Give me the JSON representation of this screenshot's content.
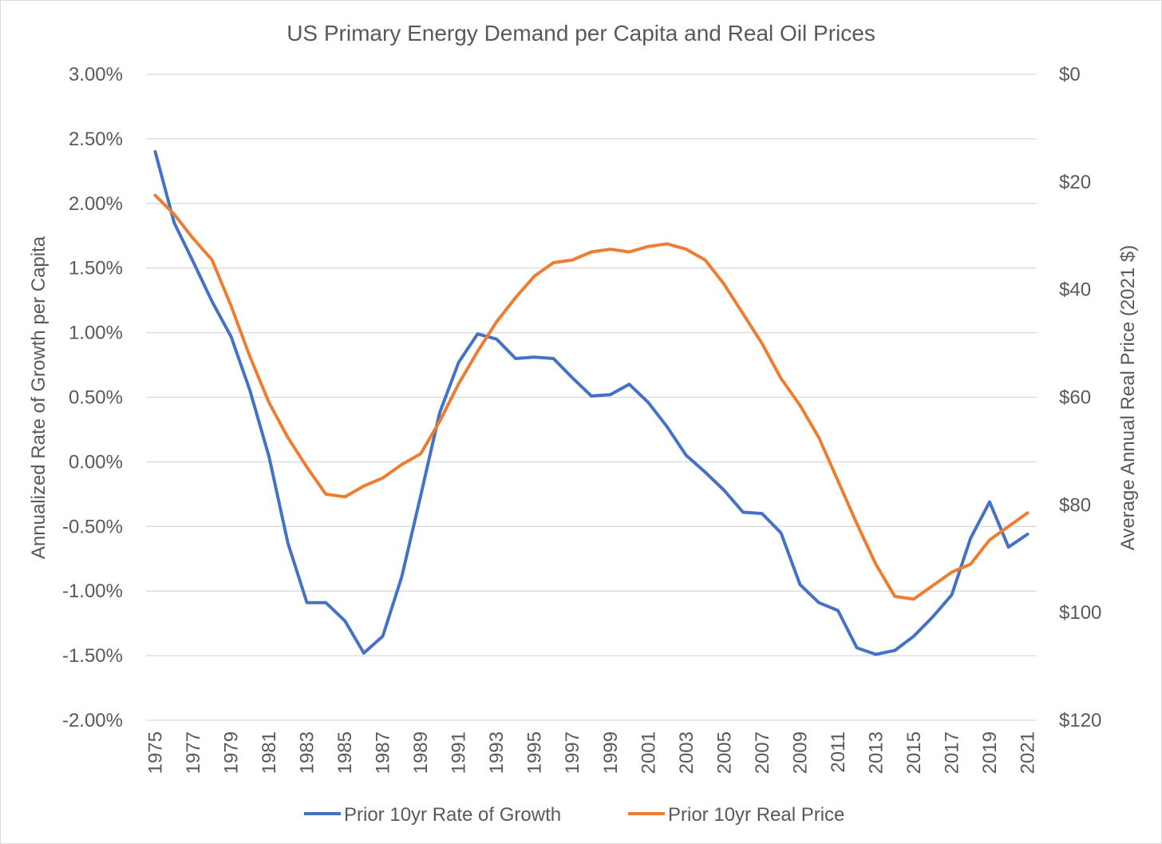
{
  "chart_data": {
    "type": "line",
    "title": "US Primary Energy Demand per Capita and Real Oil Prices",
    "ylabel": "Annualized Rate of Growth per Capita",
    "ylabel_right": "Average Annual Real Price (2021 $)",
    "xlabel": "",
    "y_ticks": [
      "3.00%",
      "2.50%",
      "2.00%",
      "1.50%",
      "1.00%",
      "0.50%",
      "0.00%",
      "-0.50%",
      "-1.00%",
      "-1.50%",
      "-2.00%"
    ],
    "y_tick_values": [
      3.0,
      2.5,
      2.0,
      1.5,
      1.0,
      0.5,
      0.0,
      -0.5,
      -1.0,
      -1.5,
      -2.0
    ],
    "ylim": [
      -2.0,
      3.0
    ],
    "y2_ticks": [
      "$0",
      "$20",
      "$40",
      "$60",
      "$80",
      "$100",
      "$120"
    ],
    "y2_tick_values": [
      0,
      20,
      40,
      60,
      80,
      100,
      120
    ],
    "y2lim": [
      0,
      120
    ],
    "y2_inverted": true,
    "x_tick_labels": [
      "1975",
      "1977",
      "1979",
      "1981",
      "1983",
      "1985",
      "1987",
      "1989",
      "1991",
      "1993",
      "1995",
      "1997",
      "1999",
      "2001",
      "2003",
      "2005",
      "2007",
      "2009",
      "2011",
      "2013",
      "2015",
      "2017",
      "2019",
      "2021"
    ],
    "x": [
      1975,
      1976,
      1977,
      1978,
      1979,
      1980,
      1981,
      1982,
      1983,
      1984,
      1985,
      1986,
      1987,
      1988,
      1989,
      1990,
      1991,
      1992,
      1993,
      1994,
      1995,
      1996,
      1997,
      1998,
      1999,
      2000,
      2001,
      2002,
      2003,
      2004,
      2005,
      2006,
      2007,
      2008,
      2009,
      2010,
      2011,
      2012,
      2013,
      2014,
      2015,
      2016,
      2017,
      2018,
      2019,
      2020,
      2021
    ],
    "grid": true,
    "legend_position": "bottom",
    "series": [
      {
        "name": "Prior 10yr Rate of Growth",
        "axis": "left",
        "color": "#4472c4",
        "values": [
          2.4,
          1.85,
          1.55,
          1.24,
          0.97,
          0.55,
          0.04,
          -0.63,
          -1.09,
          -1.09,
          -1.23,
          -1.48,
          -1.35,
          -0.89,
          -0.26,
          0.38,
          0.77,
          0.99,
          0.95,
          0.8,
          0.81,
          0.8,
          0.65,
          0.51,
          0.52,
          0.6,
          0.46,
          0.27,
          0.05,
          -0.08,
          -0.22,
          -0.39,
          -0.4,
          -0.55,
          -0.95,
          -1.09,
          -1.15,
          -1.44,
          -1.49,
          -1.46,
          -1.35,
          -1.2,
          -1.03,
          -0.59,
          -0.31,
          -0.66,
          -0.56
        ]
      },
      {
        "name": "Prior 10yr Real Price",
        "axis": "right",
        "color": "#ed7d31",
        "values": [
          22.5,
          26.0,
          30.5,
          34.5,
          43.0,
          52.5,
          61.0,
          67.5,
          73.0,
          78.0,
          78.5,
          76.5,
          75.0,
          72.5,
          70.5,
          64.5,
          57.5,
          51.5,
          46.0,
          41.5,
          37.5,
          35.0,
          34.5,
          33.0,
          32.5,
          33.0,
          32.0,
          31.5,
          32.5,
          34.5,
          39.0,
          44.5,
          50.0,
          56.5,
          61.5,
          67.5,
          75.5,
          83.5,
          91.0,
          97.0,
          97.5,
          95.0,
          92.5,
          91.0,
          86.5,
          84.0,
          81.5
        ]
      }
    ]
  }
}
